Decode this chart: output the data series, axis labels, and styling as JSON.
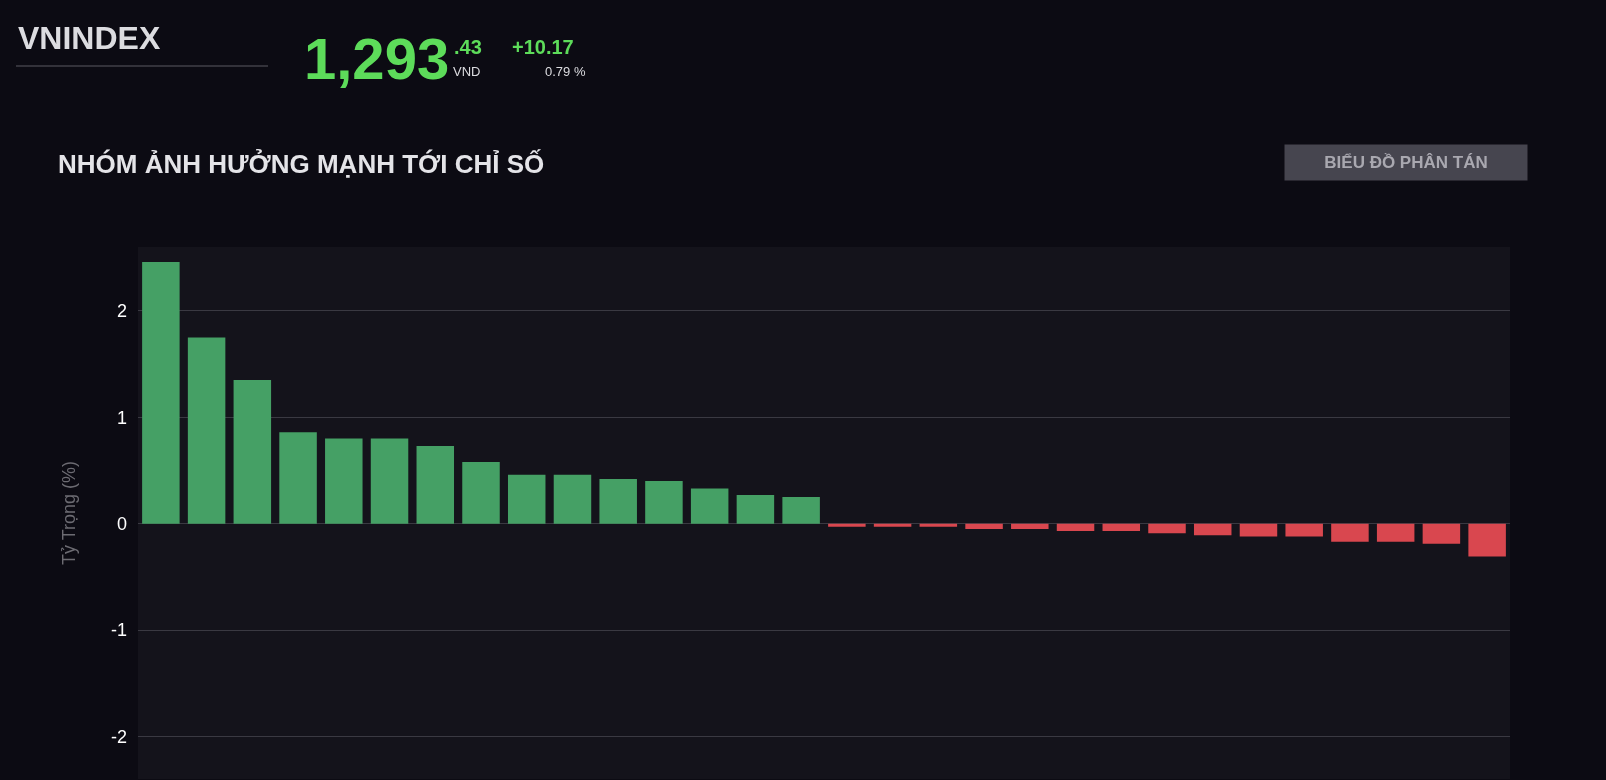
{
  "chart_data": {
    "type": "bar",
    "title": "NHÓM ẢNH HƯỞNG MẠNH TỚI CHỈ SỐ",
    "ylabel": "Tỷ Trọng (%)",
    "categories": [
      null,
      null,
      null,
      null,
      null,
      null,
      null,
      null,
      null,
      null,
      null,
      null,
      null,
      null,
      null,
      null,
      null,
      null,
      null,
      null,
      null,
      null,
      null,
      null,
      null,
      null,
      null,
      null,
      null,
      null
    ],
    "values": [
      2.46,
      1.75,
      1.35,
      0.86,
      0.8,
      0.8,
      0.73,
      0.58,
      0.46,
      0.46,
      0.42,
      0.4,
      0.33,
      0.27,
      0.25,
      -0.03,
      -0.03,
      -0.03,
      -0.05,
      -0.05,
      -0.07,
      -0.07,
      -0.09,
      -0.11,
      -0.12,
      -0.12,
      -0.17,
      -0.17,
      -0.19,
      -0.31
    ],
    "colors": [
      "#45a065",
      "#45a065",
      "#45a065",
      "#45a065",
      "#45a065",
      "#45a065",
      "#45a065",
      "#45a065",
      "#45a065",
      "#45a065",
      "#45a065",
      "#45a065",
      "#45a065",
      "#45a065",
      "#45a065",
      "#d9474f",
      "#d9474f",
      "#d9474f",
      "#d9474f",
      "#d9474f",
      "#d9474f",
      "#d9474f",
      "#d9474f",
      "#d9474f",
      "#d9474f",
      "#d9474f",
      "#d9474f",
      "#d9474f",
      "#d9474f",
      "#d9474f"
    ],
    "ylim": [
      -2.4,
      2.6
    ],
    "yticks": [
      -2,
      -1,
      0,
      1,
      2
    ],
    "grid": "y",
    "annotations": [
      "VNINDEX",
      "1,293",
      ".43",
      "VND",
      "+10.17",
      "0.79 %",
      "BIỂU ĐỒ PHÂN TÁN"
    ]
  }
}
